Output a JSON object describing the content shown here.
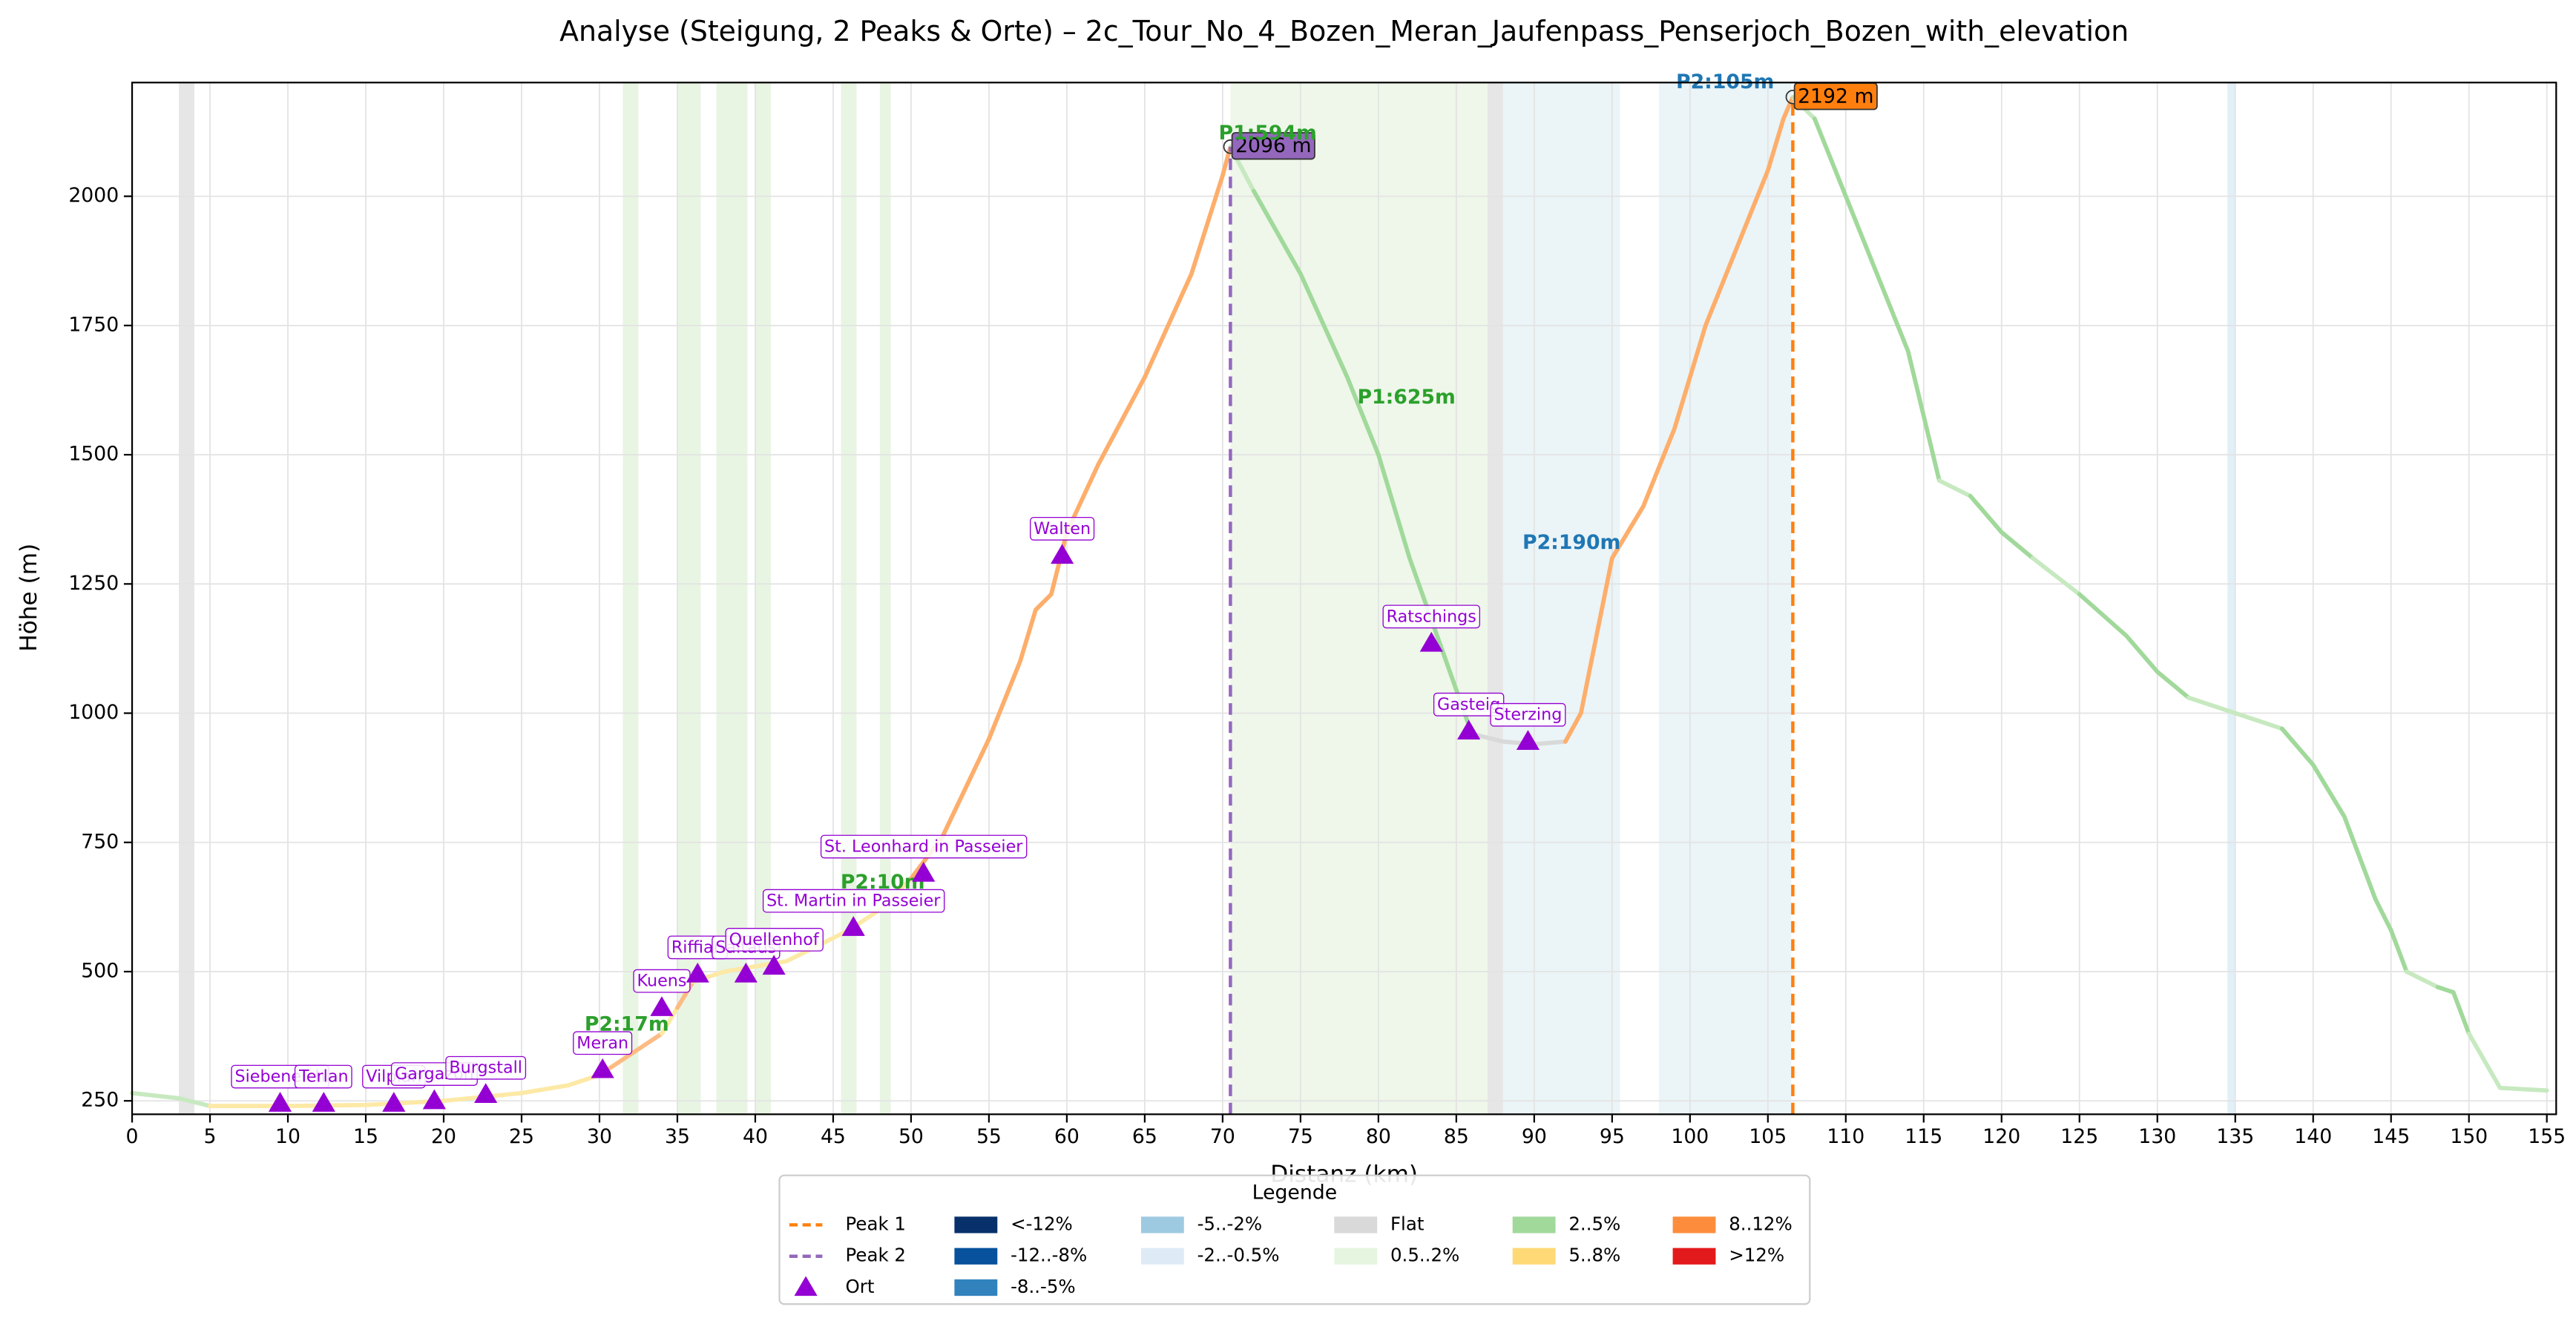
{
  "chart_data": {
    "type": "line",
    "title": "Analyse (Steigung, 2 Peaks & Orte) – 2c_Tour_No_4_Bozen_Meran_Jaufenpass_Penserjoch_Bozen_with_elevation",
    "x_label": "Distanz (km)",
    "y_label": "Höhe (m)",
    "xlim": [
      0,
      155.6
    ],
    "ylim": [
      224,
      2220
    ],
    "xticks": [
      0,
      5,
      10,
      15,
      20,
      25,
      30,
      35,
      40,
      45,
      50,
      55,
      60,
      65,
      70,
      75,
      80,
      85,
      90,
      95,
      100,
      105,
      110,
      115,
      120,
      125,
      130,
      135,
      140,
      145,
      150,
      155
    ],
    "yticks": [
      250,
      500,
      750,
      1000,
      1250,
      1500,
      1750,
      2000
    ],
    "grid": true,
    "x": [
      0,
      3,
      5,
      10,
      15,
      20,
      25,
      28,
      30,
      32,
      34,
      35,
      36,
      38,
      40,
      42,
      44,
      46,
      48,
      50,
      52,
      55,
      57,
      58,
      59,
      60,
      62,
      65,
      68,
      70,
      70.5,
      72,
      75,
      78,
      80,
      82,
      84,
      86,
      88,
      90,
      92,
      93,
      94,
      95,
      97,
      99,
      101,
      103,
      105,
      106,
      106.6,
      108,
      110,
      112,
      114,
      116,
      118,
      120,
      122,
      125,
      128,
      130,
      132,
      135,
      138,
      140,
      142,
      144,
      145,
      146,
      148,
      149,
      150,
      152,
      155
    ],
    "values": [
      265,
      255,
      240,
      240,
      242,
      250,
      265,
      280,
      300,
      340,
      380,
      430,
      480,
      500,
      510,
      520,
      550,
      580,
      620,
      680,
      760,
      950,
      1100,
      1200,
      1230,
      1350,
      1480,
      1650,
      1850,
      2040,
      2096,
      2010,
      1850,
      1650,
      1500,
      1300,
      1130,
      960,
      945,
      940,
      945,
      1000,
      1150,
      1300,
      1400,
      1550,
      1750,
      1900,
      2050,
      2150,
      2192,
      2150,
      2000,
      1850,
      1700,
      1450,
      1420,
      1350,
      1300,
      1230,
      1150,
      1080,
      1030,
      1000,
      970,
      900,
      800,
      640,
      580,
      500,
      470,
      460,
      380,
      275,
      270
    ],
    "segment_colors": [
      "#c7e9c0",
      "#c7e9c0",
      "#fde9a6",
      "#fde9a6",
      "#fde9a6",
      "#fde9a6",
      "#fde9a6",
      "#fde9a6",
      "#fdbb84",
      "#fdbb84",
      "#fde9a6",
      "#fdbb84",
      "#fde9a6",
      "#fde9a6",
      "#fde9a6",
      "#fde9a6",
      "#fde9a6",
      "#fde9a6",
      "#fde9a6",
      "#fdae6b",
      "#fdae6b",
      "#fdae6b",
      "#fdae6b",
      "#fdae6b",
      "#fdae6b",
      "#fdae6b",
      "#fdae6b",
      "#fdae6b",
      "#fdae6b",
      "#fdae6b",
      "#c7e9c0",
      "#a1d99b",
      "#a1d99b",
      "#a1d99b",
      "#a1d99b",
      "#a1d99b",
      "#a1d99b",
      "#d9d9d9",
      "#d9d9d9",
      "#d9d9d9",
      "#fdae6b",
      "#fdae6b",
      "#fdae6b",
      "#fdae6b",
      "#fdae6b",
      "#fdae6b",
      "#fdae6b",
      "#fdae6b",
      "#fdae6b",
      "#fdae6b",
      "#c7e9c0",
      "#a1d99b",
      "#a1d99b",
      "#a1d99b",
      "#a1d99b",
      "#c7e9c0",
      "#a1d99b",
      "#a1d99b",
      "#c7e9c0",
      "#a1d99b",
      "#a1d99b",
      "#a1d99b",
      "#c7e9c0",
      "#c7e9c0",
      "#a1d99b",
      "#a1d99b",
      "#a1d99b",
      "#a1d99b",
      "#a1d99b",
      "#c7e9c0",
      "#a1d99b",
      "#a1d99b",
      "#c7e9c0",
      "#c7e9c0",
      "#c7e9c0"
    ],
    "bands": [
      {
        "x0": 3,
        "x1": 4,
        "color": "#e6e6e6"
      },
      {
        "x0": 31.5,
        "x1": 32.5,
        "color": "#e8f5e3"
      },
      {
        "x0": 35,
        "x1": 36.5,
        "color": "#e8f5e3"
      },
      {
        "x0": 37.5,
        "x1": 39.5,
        "color": "#e8f5e3"
      },
      {
        "x0": 40,
        "x1": 41,
        "color": "#e8f5e3"
      },
      {
        "x0": 45.5,
        "x1": 46.5,
        "color": "#e8f5e3"
      },
      {
        "x0": 48,
        "x1": 48.7,
        "color": "#e8f5e3"
      },
      {
        "x0": 70.5,
        "x1": 87,
        "color": "#eef7ea"
      },
      {
        "x0": 87,
        "x1": 88,
        "color": "#e6e6e6"
      },
      {
        "x0": 88,
        "x1": 95.5,
        "color": "#ebf4f7"
      },
      {
        "x0": 98,
        "x1": 106.5,
        "color": "#ebf4f7"
      },
      {
        "x0": 134.5,
        "x1": 135,
        "color": "#e1eff7"
      }
    ],
    "peaks": [
      {
        "label": "Peak 1",
        "x": 106.6,
        "y": 2192,
        "value_label": "2192 m",
        "color": "#ff7f0e"
      },
      {
        "label": "Peak 2",
        "x": 70.5,
        "y": 2096,
        "value_label": "2096 m",
        "color": "#9467bd"
      }
    ],
    "orte_label": "Ort",
    "ort_color": "#9400d3",
    "orte": [
      {
        "name": "Siebeneich",
        "x": 9.5,
        "y": 245
      },
      {
        "name": "Terlan",
        "x": 12.3,
        "y": 245
      },
      {
        "name": "Vilpian",
        "x": 16.8,
        "y": 245
      },
      {
        "name": "Gargazon",
        "x": 19.4,
        "y": 250
      },
      {
        "name": "Burgstall",
        "x": 22.7,
        "y": 262
      },
      {
        "name": "Meran",
        "x": 30.2,
        "y": 310
      },
      {
        "name": "Kuens",
        "x": 34,
        "y": 430
      },
      {
        "name": "Riffian",
        "x": 36.3,
        "y": 495
      },
      {
        "name": "Saltaus",
        "x": 39.4,
        "y": 495
      },
      {
        "name": "Quellenhof",
        "x": 41.2,
        "y": 510
      },
      {
        "name": "St. Martin in Passeier",
        "x": 46.3,
        "y": 585
      },
      {
        "name": "St. Leonhard in Passeier",
        "x": 50.8,
        "y": 690
      },
      {
        "name": "Walten",
        "x": 59.7,
        "y": 1305
      },
      {
        "name": "Ratschings",
        "x": 83.4,
        "y": 1135
      },
      {
        "name": "Gasteig",
        "x": 85.8,
        "y": 965
      },
      {
        "name": "Sterzing",
        "x": 89.6,
        "y": 945
      }
    ],
    "annotations": [
      {
        "text": "P1:594m",
        "color": "#2ca02c"
      },
      {
        "text": "P1:625m",
        "color": "#2ca02c"
      },
      {
        "text": "P2:105m",
        "color": "#1f77b4"
      },
      {
        "text": "P2:190m",
        "color": "#1f77b4"
      },
      {
        "text": "P2:10m",
        "color": "#2ca02c"
      },
      {
        "text": "P2:17m",
        "color": "#2ca02c"
      }
    ],
    "legend": {
      "title": "Legende",
      "items": [
        {
          "label": "<-12%",
          "color": "#08306b"
        },
        {
          "label": "-12..-8%",
          "color": "#08519c"
        },
        {
          "label": "-8..-5%",
          "color": "#3182bd"
        },
        {
          "label": "-5..-2%",
          "color": "#9ecae1"
        },
        {
          "label": "-2..-0.5%",
          "color": "#deebf7"
        },
        {
          "label": "Flat",
          "color": "#d9d9d9"
        },
        {
          "label": "0.5..2%",
          "color": "#e5f5e0"
        },
        {
          "label": "2..5%",
          "color": "#a1d99b"
        },
        {
          "label": "5..8%",
          "color": "#fed976"
        },
        {
          "label": "8..12%",
          "color": "#fd8d3c"
        },
        {
          "label": ">12%",
          "color": "#e31a1c"
        }
      ]
    }
  }
}
